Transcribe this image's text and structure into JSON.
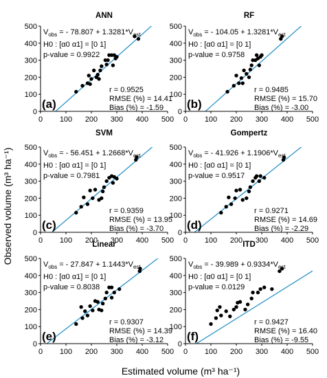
{
  "figure": {
    "ylabel": "Observed volume (m³ ha⁻¹)",
    "xlabel": "Estimated volume (m³ ha⁻¹)",
    "x_ticks": [
      "0",
      "100",
      "200",
      "300",
      "400",
      "500"
    ],
    "y_ticks": [
      "0",
      "100",
      "200",
      "300",
      "400",
      "500"
    ],
    "line_color": "#2a93c9",
    "point_color": "#000000"
  },
  "chart_data": [
    {
      "type": "scatter",
      "title": "ANN",
      "panel_label": "(a)",
      "equation": "V_obs = - 78.807 + 1.3281*V_est",
      "eq_obs": "obs",
      "eq_est": "est",
      "eq_prefix": "V",
      "eq_rest": " = - 78.807 + 1.3281*V",
      "hypothesis": "H0 : [α0 α1] = [0 1]",
      "p_value": "p-value = 0.9922",
      "r": "r = 0.9525",
      "rmse": "RMSE (%) = 14.41",
      "bias": "Bias (%) = -1.59",
      "xlim": [
        0,
        500
      ],
      "ylim": [
        0,
        500
      ],
      "fit": {
        "intercept": -78.807,
        "slope": 1.3281
      },
      "points": [
        [
          140,
          115
        ],
        [
          165,
          150
        ],
        [
          185,
          165
        ],
        [
          190,
          210
        ],
        [
          195,
          160
        ],
        [
          200,
          190
        ],
        [
          210,
          240
        ],
        [
          220,
          200
        ],
        [
          225,
          215
        ],
        [
          230,
          190
        ],
        [
          235,
          240
        ],
        [
          240,
          265
        ],
        [
          255,
          300
        ],
        [
          260,
          275
        ],
        [
          265,
          300
        ],
        [
          270,
          330
        ],
        [
          280,
          330
        ],
        [
          285,
          270
        ],
        [
          295,
          310
        ],
        [
          290,
          330
        ],
        [
          300,
          320
        ],
        [
          370,
          440
        ],
        [
          385,
          425
        ]
      ]
    },
    {
      "type": "scatter",
      "title": "RF",
      "panel_label": "(b)",
      "equation": "V_obs = - 104.05 + 1.3281*V_est",
      "eq_obs": "obs",
      "eq_est": "est",
      "eq_prefix": "V",
      "eq_rest": " = - 104.05 + 1.3281*V",
      "hypothesis": "H0 : [α0 α1] = [0 1]",
      "p_value": "p-value = 0.9758",
      "r": "r = 0.9485",
      "rmse": "RMSE (%) = 15.70",
      "bias": "Bias (%) = -3.00",
      "xlim": [
        0,
        500
      ],
      "ylim": [
        0,
        500
      ],
      "fit": {
        "intercept": -104.05,
        "slope": 1.3281
      },
      "points": [
        [
          165,
          115
        ],
        [
          190,
          150
        ],
        [
          200,
          210
        ],
        [
          210,
          165
        ],
        [
          220,
          195
        ],
        [
          225,
          165
        ],
        [
          230,
          240
        ],
        [
          240,
          220
        ],
        [
          250,
          200
        ],
        [
          255,
          245
        ],
        [
          260,
          270
        ],
        [
          265,
          300
        ],
        [
          275,
          300
        ],
        [
          280,
          330
        ],
        [
          285,
          310
        ],
        [
          290,
          270
        ],
        [
          295,
          320
        ],
        [
          300,
          330
        ],
        [
          375,
          425
        ],
        [
          380,
          440
        ]
      ]
    },
    {
      "type": "scatter",
      "title": "SVM",
      "panel_label": "(c)",
      "equation": "V_obs = - 56.451 + 1.2668*V_est",
      "eq_obs": "obs",
      "eq_est": "est",
      "eq_prefix": "V",
      "eq_rest": " = - 56.451 + 1.2668*V",
      "hypothesis": "H0 : [α0 α1] = [0 1]",
      "p_value": "p-value = 0.7981",
      "r": "r = 0.9359",
      "rmse": "RMSE (%) = 13.95",
      "bias": "Bias (%) = -3.70",
      "xlim": [
        0,
        500
      ],
      "ylim": [
        0,
        500
      ],
      "fit": {
        "intercept": -56.451,
        "slope": 1.2668
      },
      "points": [
        [
          140,
          115
        ],
        [
          160,
          150
        ],
        [
          170,
          205
        ],
        [
          185,
          165
        ],
        [
          195,
          245
        ],
        [
          205,
          200
        ],
        [
          215,
          250
        ],
        [
          230,
          190
        ],
        [
          240,
          200
        ],
        [
          245,
          240
        ],
        [
          250,
          265
        ],
        [
          260,
          300
        ],
        [
          270,
          320
        ],
        [
          280,
          330
        ],
        [
          285,
          290
        ],
        [
          290,
          325
        ],
        [
          300,
          315
        ],
        [
          375,
          425
        ],
        [
          378,
          440
        ]
      ]
    },
    {
      "type": "scatter",
      "title": "Gompertz",
      "panel_label": "(d)",
      "equation": "V_obs = - 41.926 + 1.1906*V_est",
      "eq_obs": "obs",
      "eq_est": "est",
      "eq_prefix": "V",
      "eq_rest": " = - 41.926 + 1.1906*V",
      "hypothesis": "H0 : [α0 α1] = [0 1]",
      "p_value": "p-value = 0.9517",
      "r": "r = 0.9271",
      "rmse": "RMSE (%) = 14.69",
      "bias": "Bias (%) = -2.29",
      "xlim": [
        0,
        500
      ],
      "ylim": [
        0,
        500
      ],
      "fit": {
        "intercept": -41.926,
        "slope": 1.1906
      },
      "points": [
        [
          140,
          115
        ],
        [
          160,
          150
        ],
        [
          170,
          205
        ],
        [
          180,
          165
        ],
        [
          195,
          200
        ],
        [
          200,
          245
        ],
        [
          215,
          250
        ],
        [
          225,
          190
        ],
        [
          240,
          200
        ],
        [
          250,
          240
        ],
        [
          255,
          265
        ],
        [
          265,
          300
        ],
        [
          275,
          320
        ],
        [
          280,
          330
        ],
        [
          290,
          300
        ],
        [
          295,
          330
        ],
        [
          310,
          320
        ],
        [
          385,
          425
        ],
        [
          388,
          440
        ]
      ]
    },
    {
      "type": "scatter",
      "title": "Linear",
      "panel_label": "(e)",
      "equation": "V_obs = - 27.847 + 1.1443*V_est",
      "eq_obs": "obs",
      "eq_est": "est",
      "eq_prefix": "V",
      "eq_rest": " = - 27.847 + 1.1443*V",
      "hypothesis": "H0 : [α0 α1] = [0 1]",
      "p_value": "p-value = 0.8038",
      "r": "r = 0.9307",
      "rmse": "RMSE (%) = 14.39",
      "bias": "Bias (%) = -3.12",
      "xlim": [
        0,
        500
      ],
      "ylim": [
        0,
        500
      ],
      "fit": {
        "intercept": -27.847,
        "slope": 1.1443
      },
      "points": [
        [
          140,
          115
        ],
        [
          160,
          215
        ],
        [
          165,
          150
        ],
        [
          175,
          190
        ],
        [
          185,
          165
        ],
        [
          195,
          220
        ],
        [
          205,
          195
        ],
        [
          215,
          250
        ],
        [
          225,
          245
        ],
        [
          230,
          200
        ],
        [
          240,
          195
        ],
        [
          245,
          235
        ],
        [
          255,
          265
        ],
        [
          260,
          300
        ],
        [
          270,
          330
        ],
        [
          280,
          330
        ],
        [
          280,
          270
        ],
        [
          290,
          300
        ],
        [
          310,
          320
        ],
        [
          390,
          425
        ],
        [
          392,
          440
        ]
      ]
    },
    {
      "type": "scatter",
      "title": "ITD",
      "panel_label": "(f)",
      "equation": "V_obs = - 39.989 + 0.9334*V_est",
      "eq_obs": "obs",
      "eq_est": "est",
      "eq_prefix": "V",
      "eq_rest": " = - 39.989 + 0.9334*V",
      "hypothesis": "H0 : [α0 α1] = [0 1]",
      "p_value": "p-value = 0.0129",
      "r": "r = 0.9427",
      "rmse": "RMSE (%) = 16.40",
      "bias": "Bias (%) = -9.55",
      "xlim": [
        0,
        500
      ],
      "ylim": [
        0,
        500
      ],
      "fit": {
        "intercept": -39.989,
        "slope": 0.9334
      },
      "points": [
        [
          100,
          115
        ],
        [
          120,
          150
        ],
        [
          125,
          195
        ],
        [
          135,
          215
        ],
        [
          140,
          165
        ],
        [
          160,
          190
        ],
        [
          175,
          160
        ],
        [
          190,
          200
        ],
        [
          200,
          215
        ],
        [
          205,
          240
        ],
        [
          215,
          245
        ],
        [
          235,
          200
        ],
        [
          245,
          230
        ],
        [
          260,
          265
        ],
        [
          265,
          300
        ],
        [
          285,
          300
        ],
        [
          295,
          320
        ],
        [
          310,
          330
        ],
        [
          340,
          320
        ],
        [
          370,
          425
        ],
        [
          380,
          440
        ]
      ]
    }
  ]
}
